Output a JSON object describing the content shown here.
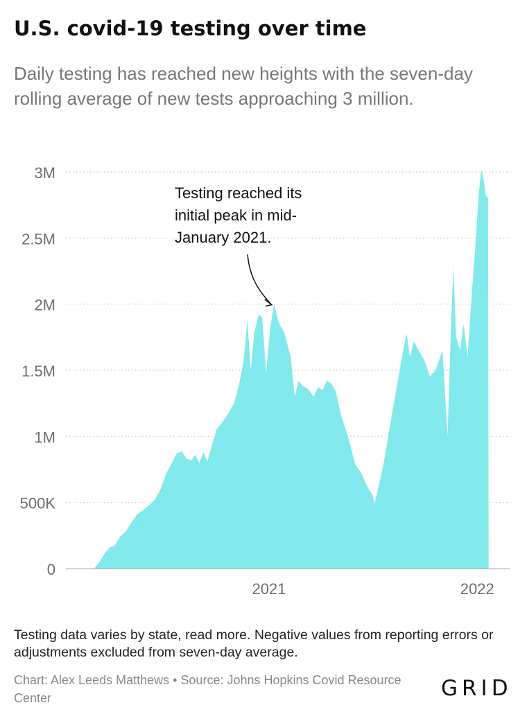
{
  "header": {
    "title": "U.S. covid-19 testing over time",
    "subtitle": "Daily testing has reached new heights with the seven-day rolling average of new tests approaching 3 million."
  },
  "chart_data": {
    "type": "area",
    "x_unit": "date",
    "ylim": [
      0,
      3000000
    ],
    "y_ticks": [
      {
        "value": 0,
        "label": "0"
      },
      {
        "value": 500000,
        "label": "500K"
      },
      {
        "value": 1000000,
        "label": "1M"
      },
      {
        "value": 1500000,
        "label": "1.5M"
      },
      {
        "value": 2000000,
        "label": "2M"
      },
      {
        "value": 2500000,
        "label": "2.5M"
      },
      {
        "value": 3000000,
        "label": "3M"
      }
    ],
    "x_ticks": [
      {
        "value": "2021-01-01",
        "label": "2021"
      },
      {
        "value": "2022-01-01",
        "label": "2022"
      }
    ],
    "xlim": [
      "2020-01-11",
      "2022-02-28"
    ],
    "grid": true,
    "fill_color": "#82e9ec",
    "annotation": {
      "text_lines": [
        "Testing reached its",
        "initial peak in mid-",
        "January 2021."
      ],
      "date": "2021-01-08",
      "value": 2000000
    },
    "series": [
      {
        "values": [
          [
            "2020-03-01",
            0
          ],
          [
            "2020-03-10",
            50000
          ],
          [
            "2020-03-20",
            120000
          ],
          [
            "2020-03-28",
            160000
          ],
          [
            "2020-04-05",
            170000
          ],
          [
            "2020-04-15",
            240000
          ],
          [
            "2020-04-25",
            280000
          ],
          [
            "2020-05-05",
            350000
          ],
          [
            "2020-05-15",
            410000
          ],
          [
            "2020-05-25",
            440000
          ],
          [
            "2020-06-05",
            480000
          ],
          [
            "2020-06-15",
            520000
          ],
          [
            "2020-06-25",
            600000
          ],
          [
            "2020-07-05",
            720000
          ],
          [
            "2020-07-15",
            800000
          ],
          [
            "2020-07-23",
            870000
          ],
          [
            "2020-08-01",
            885000
          ],
          [
            "2020-08-10",
            830000
          ],
          [
            "2020-08-18",
            820000
          ],
          [
            "2020-08-25",
            860000
          ],
          [
            "2020-09-01",
            800000
          ],
          [
            "2020-09-08",
            880000
          ],
          [
            "2020-09-15",
            810000
          ],
          [
            "2020-09-22",
            920000
          ],
          [
            "2020-10-01",
            1050000
          ],
          [
            "2020-10-10",
            1100000
          ],
          [
            "2020-10-20",
            1160000
          ],
          [
            "2020-11-01",
            1250000
          ],
          [
            "2020-11-10",
            1400000
          ],
          [
            "2020-11-18",
            1580000
          ],
          [
            "2020-11-24",
            1880000
          ],
          [
            "2020-11-30",
            1500000
          ],
          [
            "2020-12-06",
            1780000
          ],
          [
            "2020-12-14",
            1920000
          ],
          [
            "2020-12-20",
            1900000
          ],
          [
            "2020-12-27",
            1480000
          ],
          [
            "2021-01-03",
            1820000
          ],
          [
            "2021-01-10",
            2000000
          ],
          [
            "2021-01-18",
            1860000
          ],
          [
            "2021-01-28",
            1780000
          ],
          [
            "2021-02-08",
            1600000
          ],
          [
            "2021-02-15",
            1300000
          ],
          [
            "2021-02-22",
            1420000
          ],
          [
            "2021-03-01",
            1380000
          ],
          [
            "2021-03-10",
            1360000
          ],
          [
            "2021-03-20",
            1300000
          ],
          [
            "2021-03-28",
            1370000
          ],
          [
            "2021-04-05",
            1350000
          ],
          [
            "2021-04-12",
            1420000
          ],
          [
            "2021-04-20",
            1400000
          ],
          [
            "2021-04-28",
            1340000
          ],
          [
            "2021-05-08",
            1150000
          ],
          [
            "2021-05-20",
            990000
          ],
          [
            "2021-06-01",
            790000
          ],
          [
            "2021-06-12",
            720000
          ],
          [
            "2021-06-22",
            620000
          ],
          [
            "2021-07-01",
            560000
          ],
          [
            "2021-07-05",
            490000
          ],
          [
            "2021-07-12",
            620000
          ],
          [
            "2021-07-22",
            820000
          ],
          [
            "2021-08-01",
            1080000
          ],
          [
            "2021-08-12",
            1350000
          ],
          [
            "2021-08-22",
            1600000
          ],
          [
            "2021-08-30",
            1780000
          ],
          [
            "2021-09-05",
            1600000
          ],
          [
            "2021-09-12",
            1720000
          ],
          [
            "2021-09-20",
            1650000
          ],
          [
            "2021-09-30",
            1580000
          ],
          [
            "2021-10-10",
            1450000
          ],
          [
            "2021-10-20",
            1500000
          ],
          [
            "2021-11-01",
            1650000
          ],
          [
            "2021-11-10",
            1000000
          ],
          [
            "2021-11-15",
            1700000
          ],
          [
            "2021-11-20",
            2280000
          ],
          [
            "2021-11-25",
            1750000
          ],
          [
            "2021-12-02",
            1650000
          ],
          [
            "2021-12-08",
            1850000
          ],
          [
            "2021-12-15",
            1600000
          ],
          [
            "2021-12-22",
            2050000
          ],
          [
            "2021-12-28",
            2400000
          ],
          [
            "2022-01-04",
            2850000
          ],
          [
            "2022-01-08",
            3020000
          ],
          [
            "2022-01-12",
            2950000
          ],
          [
            "2022-01-16",
            2820000
          ],
          [
            "2022-01-20",
            2800000
          ],
          [
            "2022-01-21",
            0
          ]
        ]
      }
    ]
  },
  "footer": {
    "note": "Testing data varies by state, read more. Negative values from reporting errors or adjustments excluded from seven-day average.",
    "credit": "Chart: Alex Leeds Matthews • Source: Johns Hopkins Covid Resource Center",
    "logo_text": "GRID"
  }
}
